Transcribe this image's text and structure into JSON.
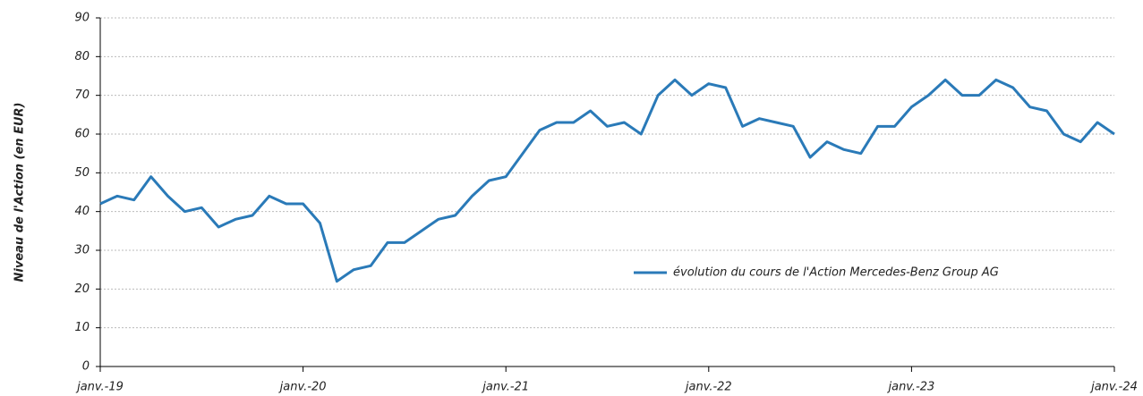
{
  "chart_data": {
    "type": "line",
    "y_label": "Niveau de l'Action (en EUR)",
    "x": [
      "2019-01",
      "2019-02",
      "2019-03",
      "2019-04",
      "2019-05",
      "2019-06",
      "2019-07",
      "2019-08",
      "2019-09",
      "2019-10",
      "2019-11",
      "2019-12",
      "2020-01",
      "2020-02",
      "2020-03",
      "2020-04",
      "2020-05",
      "2020-06",
      "2020-07",
      "2020-08",
      "2020-09",
      "2020-10",
      "2020-11",
      "2020-12",
      "2021-01",
      "2021-02",
      "2021-03",
      "2021-04",
      "2021-05",
      "2021-06",
      "2021-07",
      "2021-08",
      "2021-09",
      "2021-10",
      "2021-11",
      "2021-12",
      "2022-01",
      "2022-02",
      "2022-03",
      "2022-04",
      "2022-05",
      "2022-06",
      "2022-07",
      "2022-08",
      "2022-09",
      "2022-10",
      "2022-11",
      "2022-12",
      "2023-01",
      "2023-02",
      "2023-03",
      "2023-04",
      "2023-05",
      "2023-06",
      "2023-07",
      "2023-08",
      "2023-09",
      "2023-10",
      "2023-11",
      "2023-12",
      "2024-01"
    ],
    "series": [
      {
        "name": "évolution du cours de l'Action Mercedes-Benz Group AG",
        "color": "#2a7ab8",
        "values": [
          42,
          44,
          43,
          49,
          44,
          40,
          41,
          36,
          38,
          39,
          44,
          42,
          42,
          37,
          22,
          25,
          26,
          32,
          32,
          35,
          38,
          39,
          44,
          48,
          49,
          55,
          61,
          63,
          63,
          66,
          62,
          63,
          60,
          70,
          74,
          70,
          73,
          72,
          62,
          64,
          63,
          62,
          54,
          58,
          56,
          55,
          62,
          62,
          67,
          70,
          74,
          70,
          70,
          74,
          72,
          67,
          66,
          60,
          58,
          63,
          60
        ]
      }
    ],
    "ylim": [
      0,
      90
    ],
    "yticks": [
      0,
      10,
      20,
      30,
      40,
      50,
      60,
      70,
      80,
      90
    ],
    "xticks": [
      {
        "value": "2019-01",
        "label": "janv.-19"
      },
      {
        "value": "2020-01",
        "label": "janv.-20"
      },
      {
        "value": "2021-01",
        "label": "janv.-21"
      },
      {
        "value": "2022-01",
        "label": "janv.-22"
      },
      {
        "value": "2023-01",
        "label": "janv.-23"
      },
      {
        "value": "2024-01",
        "label": "janv.-24"
      }
    ],
    "grid": true,
    "legend": "right"
  }
}
